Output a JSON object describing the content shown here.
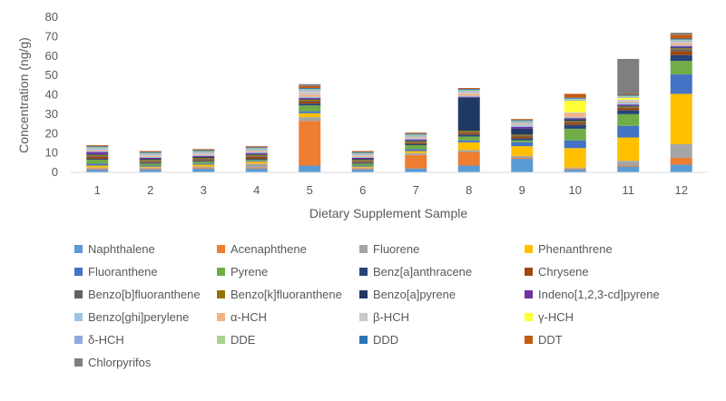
{
  "chart_data": {
    "type": "bar",
    "stacked": true,
    "xlabel": "Dietary Supplement Sample",
    "ylabel": "Concentration (ng/g)",
    "ylim": [
      0,
      80
    ],
    "yticks": [
      0,
      10,
      20,
      30,
      40,
      50,
      60,
      70,
      80
    ],
    "grid": false,
    "legend_position": "bottom",
    "categories": [
      "1",
      "2",
      "3",
      "4",
      "5",
      "6",
      "7",
      "8",
      "9",
      "10",
      "11",
      "12"
    ],
    "series": [
      {
        "name": "Naphthalene",
        "color": "#5b9bd5",
        "values": [
          1.5,
          1.5,
          2,
          2,
          3.5,
          1.5,
          2,
          3.5,
          7,
          1.5,
          3,
          4
        ]
      },
      {
        "name": "Acenaphthene",
        "color": "#ed7d31",
        "values": [
          0.5,
          0.5,
          0.5,
          0.5,
          23,
          0.5,
          7,
          7,
          0.5,
          0.5,
          0.5,
          3.5
        ]
      },
      {
        "name": "Fluorene",
        "color": "#a5a5a5",
        "values": [
          0.5,
          0.5,
          0.5,
          2,
          2,
          0.5,
          1,
          1,
          1,
          0.5,
          2.5,
          7
        ]
      },
      {
        "name": "Phenanthrene",
        "color": "#ffc000",
        "values": [
          1,
          0.5,
          1,
          1,
          2,
          0.5,
          1,
          4,
          5,
          10,
          12,
          26
        ]
      },
      {
        "name": "Fluoranthene",
        "color": "#4472c4",
        "values": [
          1,
          0.5,
          0.5,
          0.5,
          1,
          0.5,
          1,
          1,
          2,
          4,
          6,
          10
        ]
      },
      {
        "name": "Pyrene",
        "color": "#70ad47",
        "values": [
          2,
          1,
          1,
          0.5,
          3,
          1,
          2,
          2,
          1,
          6,
          6,
          7
        ]
      },
      {
        "name": "Benz[a]anthracene",
        "color": "#264478",
        "values": [
          0.5,
          0.5,
          0.5,
          0.5,
          1,
          0.5,
          0.5,
          1,
          1,
          2,
          2,
          3
        ]
      },
      {
        "name": "Chrysene",
        "color": "#9e480e",
        "values": [
          1,
          0.5,
          0.5,
          1,
          1,
          0.5,
          0.5,
          1,
          1,
          1,
          1,
          2
        ]
      },
      {
        "name": "Benzo[b]fluoranthene",
        "color": "#636363",
        "values": [
          0.5,
          0.5,
          0.5,
          0.5,
          0.5,
          0.5,
          0.5,
          0.5,
          0.5,
          0.5,
          0.5,
          1
        ]
      },
      {
        "name": "Benzo[k]fluoranthene",
        "color": "#997300",
        "values": [
          0.5,
          0.5,
          0.5,
          0.5,
          0.5,
          0.5,
          0.5,
          0.5,
          0.5,
          0.5,
          0.5,
          0.5
        ]
      },
      {
        "name": "Benzo[a]pyrene",
        "color": "#203864",
        "values": [
          0.5,
          0.5,
          0.5,
          0.5,
          0.5,
          0.5,
          0.5,
          17,
          3,
          1,
          0.5,
          0.5
        ]
      },
      {
        "name": "Indeno[1,2,3-cd]pyrene",
        "color": "#7030a0",
        "values": [
          1,
          0.5,
          0.5,
          0.5,
          0.5,
          0.5,
          0.5,
          0.5,
          1,
          0.5,
          0.5,
          0.5
        ]
      },
      {
        "name": "Benzo[ghi]perylene",
        "color": "#9dc3e6",
        "values": [
          0.5,
          0.5,
          0.5,
          0.5,
          0.5,
          0.5,
          0.5,
          0.5,
          1,
          0.5,
          1,
          0.5
        ]
      },
      {
        "name": "α-HCH",
        "color": "#f4b183",
        "values": [
          0.5,
          0.5,
          0.5,
          0.5,
          1,
          0.5,
          0.5,
          1,
          0.5,
          2,
          0.5,
          1
        ]
      },
      {
        "name": "β-HCH",
        "color": "#c9c9c9",
        "values": [
          0.5,
          0.5,
          0.5,
          0.5,
          2,
          0.5,
          0.5,
          1,
          0.5,
          0.5,
          1,
          1
        ]
      },
      {
        "name": "γ-HCH",
        "color": "#ffff33",
        "values": [
          0,
          0,
          0,
          0,
          0,
          0,
          0,
          0,
          0,
          6,
          1,
          0
        ]
      },
      {
        "name": "δ-HCH",
        "color": "#8faadc",
        "values": [
          0.5,
          0.5,
          0.5,
          0.5,
          0.5,
          0.5,
          0.5,
          0.5,
          0.5,
          0.5,
          0.5,
          0.5
        ]
      },
      {
        "name": "DDE",
        "color": "#a9d18e",
        "values": [
          0.5,
          0.5,
          0.5,
          0.5,
          0.5,
          0.5,
          0.5,
          0.5,
          0.5,
          0.5,
          0.5,
          0.5
        ]
      },
      {
        "name": "DDD",
        "color": "#2e75b6",
        "values": [
          0.5,
          0.5,
          0.5,
          0.5,
          0.5,
          0.5,
          0.5,
          0.5,
          0.5,
          0.5,
          0.5,
          0.5
        ]
      },
      {
        "name": "DDT",
        "color": "#c55a11",
        "values": [
          0.5,
          0.5,
          0.5,
          0.5,
          1,
          0.5,
          0.5,
          0.5,
          0.5,
          2,
          0.5,
          2
        ]
      },
      {
        "name": "Chlorpyrifos",
        "color": "#7f7f7f",
        "values": [
          0,
          0,
          0,
          0,
          1,
          0,
          0,
          0,
          0,
          0,
          18,
          1
        ]
      }
    ]
  }
}
